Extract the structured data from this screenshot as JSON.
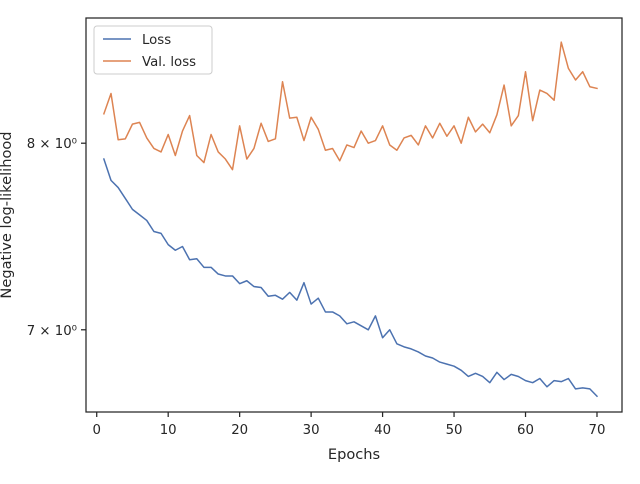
{
  "chart_data": {
    "type": "line",
    "title": "",
    "xlabel": "Epochs",
    "ylabel": "Negative log-likelihood",
    "yscale": "log",
    "xlim": [
      -1.5,
      73.5
    ],
    "ylim": [
      6.6,
      8.75
    ],
    "xticks": [
      0,
      10,
      20,
      30,
      40,
      50,
      60,
      70
    ],
    "xtick_labels": [
      "0",
      "10",
      "20",
      "30",
      "40",
      "50",
      "60",
      "70"
    ],
    "yticks": [
      7,
      8
    ],
    "ytick_labels": [
      "7 × 10⁰",
      "8 × 10⁰"
    ],
    "grid": false,
    "legend_position": "upper left",
    "x": [
      1,
      2,
      3,
      4,
      5,
      6,
      7,
      8,
      9,
      10,
      11,
      12,
      13,
      14,
      15,
      16,
      17,
      18,
      19,
      20,
      21,
      22,
      23,
      24,
      25,
      26,
      27,
      28,
      29,
      30,
      31,
      32,
      33,
      34,
      35,
      36,
      37,
      38,
      39,
      40,
      41,
      42,
      43,
      44,
      45,
      46,
      47,
      48,
      49,
      50,
      51,
      52,
      53,
      54,
      55,
      56,
      57,
      58,
      59,
      60,
      61,
      62,
      63,
      64,
      65,
      66,
      67,
      68,
      69,
      70
    ],
    "series": [
      {
        "name": "Loss",
        "color": "#4c72b0",
        "values": [
          7.91,
          7.79,
          7.75,
          7.69,
          7.63,
          7.6,
          7.57,
          7.51,
          7.5,
          7.44,
          7.41,
          7.43,
          7.36,
          7.365,
          7.32,
          7.32,
          7.285,
          7.275,
          7.275,
          7.235,
          7.25,
          7.22,
          7.215,
          7.17,
          7.175,
          7.155,
          7.19,
          7.15,
          7.24,
          7.13,
          7.16,
          7.09,
          7.09,
          7.07,
          7.03,
          7.04,
          7.02,
          7.0,
          7.07,
          6.96,
          7.0,
          6.93,
          6.915,
          6.905,
          6.89,
          6.87,
          6.86,
          6.84,
          6.83,
          6.82,
          6.8,
          6.77,
          6.785,
          6.77,
          6.74,
          6.79,
          6.755,
          6.78,
          6.77,
          6.75,
          6.74,
          6.76,
          6.72,
          6.75,
          6.745,
          6.76,
          6.71,
          6.715,
          6.71,
          6.675
        ]
      },
      {
        "name": "Val. loss",
        "color": "#dd8452",
        "values": [
          8.17,
          8.29,
          8.02,
          8.025,
          8.11,
          8.12,
          8.03,
          7.97,
          7.95,
          8.05,
          7.93,
          8.07,
          8.16,
          7.93,
          7.89,
          8.05,
          7.95,
          7.91,
          7.85,
          8.1,
          7.91,
          7.97,
          8.115,
          8.01,
          8.025,
          8.36,
          8.145,
          8.15,
          8.015,
          8.15,
          8.08,
          7.96,
          7.97,
          7.9,
          7.99,
          7.975,
          8.07,
          8.0,
          8.015,
          8.1,
          7.99,
          7.96,
          8.03,
          8.045,
          7.99,
          8.1,
          8.03,
          8.115,
          8.04,
          8.1,
          8.0,
          8.15,
          8.065,
          8.11,
          8.06,
          8.165,
          8.34,
          8.1,
          8.16,
          8.42,
          8.13,
          8.31,
          8.29,
          8.25,
          8.6,
          8.44,
          8.37,
          8.42,
          8.33,
          8.32
        ]
      }
    ]
  }
}
